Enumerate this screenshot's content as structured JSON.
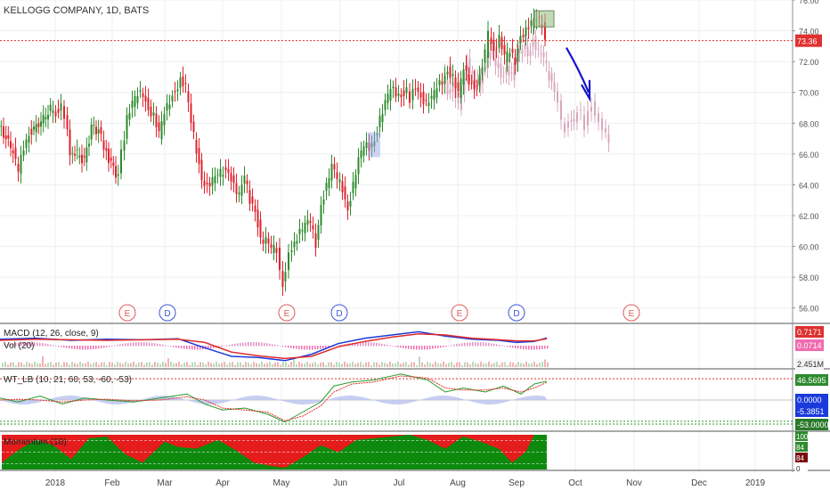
{
  "header": {
    "title": "KELLOGG COMPANY, 1D, BATS"
  },
  "colors": {
    "up": "#2e8b2e",
    "down": "#e0222c",
    "ghost": "#d8a8bc",
    "grid": "#eceff3",
    "axis": "#8a8f99",
    "ref_line": "#e03030",
    "arrow": "#1515cc",
    "macd_line": "#1a3adb",
    "signal_line": "#e02a2a",
    "hist_neg": "#f06bb0",
    "hist_pos": "#2a8a2a",
    "wt1": "#2a9a2a",
    "wt2": "#e02a2a",
    "wt_area": "#b9c2ee",
    "mom_bg": "#e51c1c",
    "mom_fg": "#0d8a0d"
  },
  "chart_data": [
    {
      "type": "candlestick",
      "name": "price",
      "ylim": [
        55,
        76
      ],
      "y_ticks": [
        "56.00",
        "58.00",
        "60.00",
        "62.00",
        "64.00",
        "66.00",
        "68.00",
        "70.00",
        "72.00",
        "74.00",
        "76.00"
      ],
      "x_ticks": [
        "2018",
        "Feb",
        "Mar",
        "Apr",
        "May",
        "Jun",
        "Jul",
        "Aug",
        "Sep",
        "Oct",
        "Nov",
        "Dec",
        "2019"
      ],
      "reference_line": {
        "value": 73.36,
        "label": "73.36"
      },
      "close_points": [
        [
          0,
          67.8
        ],
        [
          8,
          67.0
        ],
        [
          16,
          66.2
        ],
        [
          22,
          64.8
        ],
        [
          28,
          66.5
        ],
        [
          34,
          67.4
        ],
        [
          42,
          67.8
        ],
        [
          50,
          68.3
        ],
        [
          58,
          68.9
        ],
        [
          64,
          68.7
        ],
        [
          70,
          69.2
        ],
        [
          74,
          68.5
        ],
        [
          80,
          66.2
        ],
        [
          88,
          66.0
        ],
        [
          96,
          65.5
        ],
        [
          104,
          67.7
        ],
        [
          112,
          67.5
        ],
        [
          118,
          66.5
        ],
        [
          126,
          65.3
        ],
        [
          134,
          64.5
        ],
        [
          138,
          66.0
        ],
        [
          144,
          68.3
        ],
        [
          150,
          69.2
        ],
        [
          156,
          69.8
        ],
        [
          162,
          70.0
        ],
        [
          168,
          69.0
        ],
        [
          174,
          68.5
        ],
        [
          180,
          67.2
        ],
        [
          186,
          68.6
        ],
        [
          192,
          69.5
        ],
        [
          198,
          70.2
        ],
        [
          204,
          70.8
        ],
        [
          210,
          70.3
        ],
        [
          216,
          68.0
        ],
        [
          222,
          66.3
        ],
        [
          228,
          64.5
        ],
        [
          234,
          63.9
        ],
        [
          240,
          64.2
        ],
        [
          246,
          64.6
        ],
        [
          252,
          64.9
        ],
        [
          258,
          65.0
        ],
        [
          264,
          64.0
        ],
        [
          270,
          63.2
        ],
        [
          276,
          64.5
        ],
        [
          282,
          63.0
        ],
        [
          288,
          62.5
        ],
        [
          294,
          60.5
        ],
        [
          300,
          60.3
        ],
        [
          306,
          59.8
        ],
        [
          312,
          59.8
        ],
        [
          316,
          58.4
        ],
        [
          319,
          57.5
        ],
        [
          322,
          58.3
        ],
        [
          326,
          59.4
        ],
        [
          332,
          60.4
        ],
        [
          338,
          60.9
        ],
        [
          344,
          61.3
        ],
        [
          350,
          61.6
        ],
        [
          356,
          60.2
        ],
        [
          362,
          62.8
        ],
        [
          368,
          63.9
        ],
        [
          374,
          65.1
        ],
        [
          380,
          64.4
        ],
        [
          386,
          63.8
        ],
        [
          392,
          62.5
        ],
        [
          398,
          64.0
        ],
        [
          404,
          65.5
        ],
        [
          410,
          66.5
        ],
        [
          416,
          66.5
        ],
        [
          422,
          67.0
        ],
        [
          428,
          68.3
        ],
        [
          434,
          69.2
        ],
        [
          440,
          70.2
        ],
        [
          446,
          70.0
        ],
        [
          452,
          69.9
        ],
        [
          458,
          70.2
        ],
        [
          462,
          69.5
        ],
        [
          468,
          70.5
        ],
        [
          474,
          69.8
        ],
        [
          480,
          69.3
        ],
        [
          486,
          69.5
        ],
        [
          492,
          70.3
        ],
        [
          498,
          70.8
        ],
        [
          504,
          71.5
        ],
        [
          510,
          71.0
        ],
        [
          516,
          69.8
        ],
        [
          522,
          71.5
        ],
        [
          528,
          70.8
        ],
        [
          534,
          70.4
        ],
        [
          540,
          71.0
        ],
        [
          546,
          72.5
        ],
        [
          550,
          73.8
        ],
        [
          556,
          72.8
        ],
        [
          562,
          73.5
        ],
        [
          568,
          72.2
        ],
        [
          574,
          72.6
        ],
        [
          580,
          72.1
        ],
        [
          586,
          73.8
        ],
        [
          592,
          74.0
        ],
        [
          598,
          74.4
        ],
        [
          604,
          74.8
        ],
        [
          610,
          74.5
        ],
        [
          614,
          73.5
        ]
      ],
      "projection": {
        "label": "projected bars",
        "points": [
          [
            498,
            71.5
          ],
          [
            504,
            70.0
          ],
          [
            510,
            70.5
          ],
          [
            516,
            69.0
          ],
          [
            520,
            70.2
          ],
          [
            526,
            72.0
          ],
          [
            532,
            71.0
          ],
          [
            538,
            70.3
          ],
          [
            546,
            71.8
          ],
          [
            552,
            72.6
          ],
          [
            558,
            72.0
          ],
          [
            564,
            71.2
          ],
          [
            570,
            71.5
          ],
          [
            576,
            71.0
          ],
          [
            582,
            72.5
          ],
          [
            588,
            73.0
          ],
          [
            594,
            72.6
          ],
          [
            600,
            73.4
          ],
          [
            606,
            72.5
          ],
          [
            612,
            72.2
          ],
          [
            618,
            71.0
          ],
          [
            624,
            70.3
          ],
          [
            628,
            69.6
          ],
          [
            632,
            68.0
          ],
          [
            636,
            67.6
          ],
          [
            640,
            68.0
          ],
          [
            646,
            68.3
          ],
          [
            650,
            69.0
          ],
          [
            654,
            68.6
          ],
          [
            658,
            67.8
          ],
          [
            662,
            68.6
          ],
          [
            666,
            69.2
          ],
          [
            670,
            68.4
          ],
          [
            674,
            68.1
          ],
          [
            678,
            67.6
          ],
          [
            682,
            67.3
          ],
          [
            685,
            66.9
          ]
        ]
      },
      "annotations": {
        "events": [
          {
            "letter": "E",
            "x": 143
          },
          {
            "letter": "D",
            "x": 188
          },
          {
            "letter": "E",
            "x": 322
          },
          {
            "letter": "D",
            "x": 381
          },
          {
            "letter": "E",
            "x": 516
          },
          {
            "letter": "D",
            "x": 580
          },
          {
            "letter": "E",
            "x": 709
          }
        ]
      }
    },
    {
      "type": "line",
      "name": "MACD",
      "label": "MACD (12, 26, close, 9)",
      "sublabel": "Vol (20)",
      "value_labels": [
        "0.7171",
        "0.0714",
        "2.451M"
      ],
      "macd": [
        [
          0,
          0.6
        ],
        [
          40,
          0.7
        ],
        [
          80,
          0.5
        ],
        [
          120,
          0.6
        ],
        [
          160,
          0.55
        ],
        [
          200,
          0.65
        ],
        [
          230,
          -0.2
        ],
        [
          260,
          -1.0
        ],
        [
          290,
          -1.1
        ],
        [
          320,
          -1.4
        ],
        [
          350,
          -0.8
        ],
        [
          380,
          0.2
        ],
        [
          410,
          0.7
        ],
        [
          440,
          1.0
        ],
        [
          470,
          1.3
        ],
        [
          500,
          0.9
        ],
        [
          530,
          0.6
        ],
        [
          560,
          0.5
        ],
        [
          580,
          0.3
        ],
        [
          600,
          0.4
        ],
        [
          614,
          0.72
        ]
      ],
      "signal": [
        [
          0,
          0.5
        ],
        [
          40,
          0.6
        ],
        [
          80,
          0.55
        ],
        [
          120,
          0.5
        ],
        [
          160,
          0.55
        ],
        [
          200,
          0.6
        ],
        [
          230,
          0.3
        ],
        [
          260,
          -0.6
        ],
        [
          290,
          -0.95
        ],
        [
          320,
          -1.2
        ],
        [
          350,
          -1.0
        ],
        [
          380,
          -0.1
        ],
        [
          410,
          0.4
        ],
        [
          440,
          0.8
        ],
        [
          470,
          1.1
        ],
        [
          500,
          1.0
        ],
        [
          530,
          0.7
        ],
        [
          560,
          0.55
        ],
        [
          580,
          0.45
        ],
        [
          600,
          0.45
        ],
        [
          614,
          0.65
        ]
      ]
    },
    {
      "type": "line",
      "name": "WT_LB",
      "label": "WT_LB (10, 21, 60, 53, -60, -53)",
      "value_labels": [
        "46.5695",
        "0.0000",
        "-5.3851",
        "-53.0000"
      ],
      "wt1": [
        [
          0,
          5
        ],
        [
          20,
          -5
        ],
        [
          45,
          10
        ],
        [
          70,
          -10
        ],
        [
          95,
          5
        ],
        [
          120,
          0
        ],
        [
          150,
          -5
        ],
        [
          180,
          5
        ],
        [
          210,
          15
        ],
        [
          230,
          -10
        ],
        [
          250,
          -25
        ],
        [
          275,
          -20
        ],
        [
          300,
          -35
        ],
        [
          320,
          -55
        ],
        [
          340,
          -30
        ],
        [
          360,
          -5
        ],
        [
          375,
          35
        ],
        [
          395,
          45
        ],
        [
          420,
          50
        ],
        [
          450,
          65
        ],
        [
          480,
          50
        ],
        [
          500,
          20
        ],
        [
          520,
          30
        ],
        [
          545,
          20
        ],
        [
          565,
          35
        ],
        [
          585,
          15
        ],
        [
          600,
          40
        ],
        [
          614,
          47
        ]
      ],
      "wt2": [
        [
          0,
          0
        ],
        [
          20,
          2
        ],
        [
          45,
          0
        ],
        [
          70,
          -5
        ],
        [
          95,
          0
        ],
        [
          120,
          2
        ],
        [
          150,
          -2
        ],
        [
          180,
          0
        ],
        [
          210,
          8
        ],
        [
          230,
          0
        ],
        [
          250,
          -20
        ],
        [
          275,
          -25
        ],
        [
          300,
          -30
        ],
        [
          320,
          -52
        ],
        [
          340,
          -40
        ],
        [
          360,
          -15
        ],
        [
          375,
          20
        ],
        [
          395,
          40
        ],
        [
          420,
          45
        ],
        [
          450,
          60
        ],
        [
          480,
          55
        ],
        [
          500,
          30
        ],
        [
          520,
          25
        ],
        [
          545,
          25
        ],
        [
          565,
          30
        ],
        [
          585,
          20
        ],
        [
          600,
          30
        ],
        [
          614,
          44
        ]
      ]
    },
    {
      "type": "area",
      "name": "Momentum",
      "label": "Momentum (18)",
      "value_labels": [
        "100",
        "84",
        "84",
        "0"
      ],
      "ylim": [
        0,
        100
      ],
      "green": [
        [
          0,
          20
        ],
        [
          20,
          55
        ],
        [
          40,
          85
        ],
        [
          60,
          70
        ],
        [
          80,
          30
        ],
        [
          100,
          90
        ],
        [
          120,
          95
        ],
        [
          140,
          45
        ],
        [
          160,
          20
        ],
        [
          185,
          80
        ],
        [
          200,
          65
        ],
        [
          220,
          60
        ],
        [
          245,
          85
        ],
        [
          265,
          55
        ],
        [
          285,
          20
        ],
        [
          305,
          10
        ],
        [
          320,
          5
        ],
        [
          340,
          35
        ],
        [
          360,
          70
        ],
        [
          380,
          50
        ],
        [
          400,
          85
        ],
        [
          420,
          90
        ],
        [
          440,
          95
        ],
        [
          460,
          100
        ],
        [
          480,
          85
        ],
        [
          500,
          60
        ],
        [
          520,
          95
        ],
        [
          540,
          80
        ],
        [
          560,
          60
        ],
        [
          575,
          20
        ],
        [
          590,
          50
        ],
        [
          600,
          100
        ],
        [
          614,
          100
        ]
      ]
    }
  ]
}
